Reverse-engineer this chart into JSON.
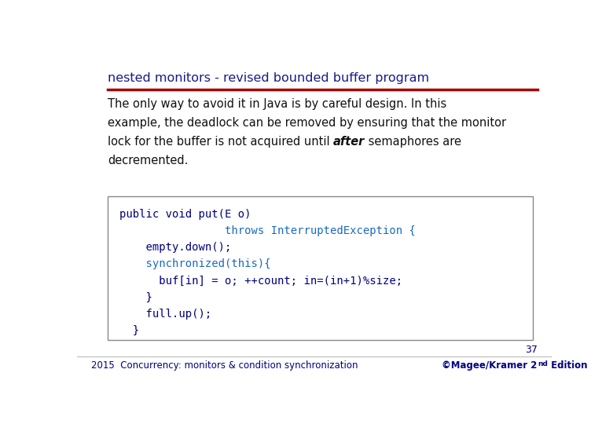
{
  "title": "nested monitors - revised bounded buffer program",
  "title_color": "#1a1a8c",
  "title_fontsize": 11.5,
  "rule_color": "#aa0000",
  "body_text_lines": [
    "The only way to avoid it in Java is by careful design. In this",
    "example, the deadlock can be removed by ensuring that the monitor",
    "lock for the buffer is not acquired until {after} semaphores are",
    "decremented."
  ],
  "body_color": "#111111",
  "body_fontsize": 10.5,
  "code_lines": [
    {
      "text": "public void put(E o)",
      "color": "#000080"
    },
    {
      "text": "                throws InterruptedException {",
      "color": "#1a6bbf"
    },
    {
      "text": "    empty.down();",
      "color": "#000080"
    },
    {
      "text": "    synchronized(this){",
      "color": "#1a6bbf"
    },
    {
      "text": "      buf[in] = o; ++count; in=(in+1)%size;",
      "color": "#000080"
    },
    {
      "text": "    }",
      "color": "#000080"
    },
    {
      "text": "    full.up();",
      "color": "#000080"
    },
    {
      "text": "  }",
      "color": "#000080"
    }
  ],
  "code_box_color": "#ffffff",
  "code_box_border": "#888888",
  "footer_left": "2015  Concurrency: monitors & condition synchronization",
  "footer_right": "©Magee/Kramer 2",
  "footer_right_super": "nd",
  "footer_right_end": " Edition",
  "footer_page": "37",
  "footer_color": "#000080",
  "footer_fontsize": 8.5,
  "bg_color": "#ffffff"
}
